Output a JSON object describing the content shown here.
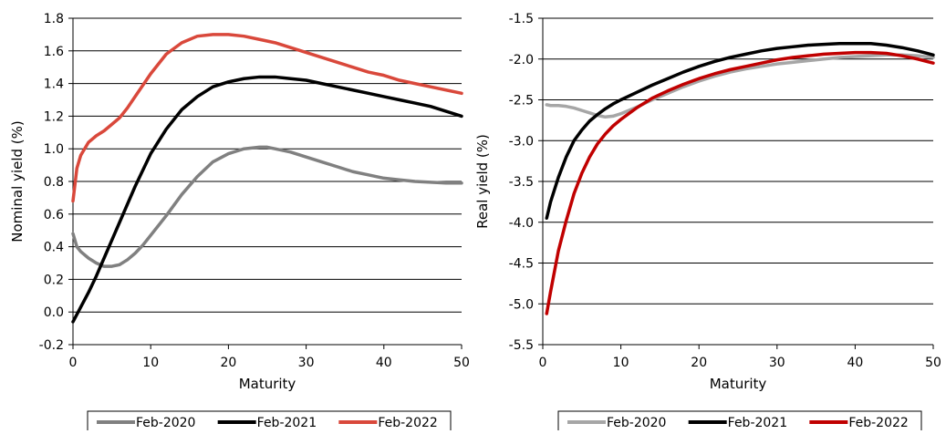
{
  "chart_data": [
    {
      "type": "line",
      "title": "",
      "xlabel": "Maturity",
      "ylabel": "Nominal yield (%)",
      "xlim": [
        0,
        50
      ],
      "ylim": [
        -0.2,
        1.8
      ],
      "xticks": [
        "0",
        "10",
        "20",
        "30",
        "40",
        "50"
      ],
      "yticks": [
        "-0.2",
        "0.0",
        "0.2",
        "0.4",
        "0.6",
        "0.8",
        "1.0",
        "1.2",
        "1.4",
        "1.6",
        "1.8"
      ],
      "grid": "horizontal",
      "legend_position": "bottom",
      "series": [
        {
          "name": "Feb-2020",
          "color": "#808080",
          "x": [
            0,
            0.5,
            1,
            2,
            3,
            4,
            5,
            6,
            7,
            8,
            9,
            10,
            12,
            14,
            16,
            18,
            20,
            22,
            24,
            25,
            26,
            28,
            30,
            32,
            34,
            36,
            38,
            40,
            42,
            44,
            46,
            48,
            50
          ],
          "y": [
            0.48,
            0.4,
            0.37,
            0.33,
            0.3,
            0.28,
            0.28,
            0.29,
            0.32,
            0.36,
            0.41,
            0.47,
            0.59,
            0.72,
            0.83,
            0.92,
            0.97,
            1.0,
            1.01,
            1.01,
            1.0,
            0.98,
            0.95,
            0.92,
            0.89,
            0.86,
            0.84,
            0.82,
            0.81,
            0.8,
            0.795,
            0.79,
            0.79
          ]
        },
        {
          "name": "Feb-2021",
          "color": "#000000",
          "x": [
            0,
            1,
            2,
            3,
            4,
            5,
            6,
            7,
            8,
            9,
            10,
            12,
            14,
            16,
            18,
            20,
            22,
            24,
            26,
            28,
            30,
            32,
            34,
            36,
            38,
            40,
            42,
            44,
            46,
            48,
            50
          ],
          "y": [
            -0.06,
            0.03,
            0.12,
            0.22,
            0.33,
            0.44,
            0.55,
            0.66,
            0.77,
            0.87,
            0.97,
            1.12,
            1.24,
            1.32,
            1.38,
            1.41,
            1.43,
            1.44,
            1.44,
            1.43,
            1.42,
            1.4,
            1.38,
            1.36,
            1.34,
            1.32,
            1.3,
            1.28,
            1.26,
            1.23,
            1.2
          ]
        },
        {
          "name": "Feb-2022",
          "color": "#d9483b",
          "x": [
            0,
            0.5,
            1,
            2,
            3,
            4,
            5,
            6,
            7,
            8,
            9,
            10,
            12,
            14,
            16,
            18,
            20,
            22,
            24,
            26,
            28,
            30,
            32,
            34,
            36,
            38,
            40,
            42,
            44,
            46,
            48,
            50
          ],
          "y": [
            0.68,
            0.88,
            0.96,
            1.04,
            1.08,
            1.11,
            1.15,
            1.19,
            1.25,
            1.32,
            1.39,
            1.46,
            1.58,
            1.65,
            1.69,
            1.7,
            1.7,
            1.69,
            1.67,
            1.65,
            1.62,
            1.59,
            1.56,
            1.53,
            1.5,
            1.47,
            1.45,
            1.42,
            1.4,
            1.38,
            1.36,
            1.34
          ]
        }
      ]
    },
    {
      "type": "line",
      "title": "",
      "xlabel": "Maturity",
      "ylabel": "Real yield (%)",
      "xlim": [
        0,
        50
      ],
      "ylim": [
        -5.5,
        -1.5
      ],
      "xticks": [
        "0",
        "10",
        "20",
        "30",
        "40",
        "50"
      ],
      "yticks": [
        "-5.5",
        "-5.0",
        "-4.5",
        "-4.0",
        "-3.5",
        "-3.0",
        "-2.5",
        "-2.0",
        "-1.5"
      ],
      "grid": "horizontal",
      "legend_position": "bottom",
      "series": [
        {
          "name": "Feb-2020",
          "color": "#a6a6a6",
          "x": [
            0.5,
            1,
            2,
            3,
            4,
            5,
            6,
            7,
            8,
            9,
            10,
            12,
            14,
            16,
            18,
            20,
            22,
            24,
            26,
            28,
            30,
            32,
            34,
            36,
            38,
            40,
            42,
            44,
            46,
            48,
            50
          ],
          "y": [
            -2.56,
            -2.57,
            -2.57,
            -2.58,
            -2.6,
            -2.63,
            -2.66,
            -2.69,
            -2.71,
            -2.7,
            -2.67,
            -2.59,
            -2.5,
            -2.42,
            -2.34,
            -2.27,
            -2.21,
            -2.16,
            -2.12,
            -2.09,
            -2.06,
            -2.04,
            -2.02,
            -2.0,
            -1.98,
            -1.97,
            -1.96,
            -1.95,
            -1.95,
            -1.96,
            -1.98
          ]
        },
        {
          "name": "Feb-2021",
          "color": "#000000",
          "x": [
            0.5,
            1,
            2,
            3,
            4,
            5,
            6,
            7,
            8,
            9,
            10,
            12,
            14,
            16,
            18,
            20,
            22,
            24,
            26,
            28,
            30,
            32,
            34,
            36,
            38,
            40,
            42,
            44,
            46,
            48,
            50
          ],
          "y": [
            -3.95,
            -3.75,
            -3.45,
            -3.2,
            -3.0,
            -2.87,
            -2.76,
            -2.68,
            -2.61,
            -2.55,
            -2.5,
            -2.41,
            -2.32,
            -2.24,
            -2.16,
            -2.09,
            -2.03,
            -1.98,
            -1.94,
            -1.9,
            -1.87,
            -1.85,
            -1.83,
            -1.82,
            -1.81,
            -1.81,
            -1.81,
            -1.83,
            -1.86,
            -1.9,
            -1.95
          ]
        },
        {
          "name": "Feb-2022",
          "color": "#c00000",
          "x": [
            0.5,
            1,
            2,
            3,
            4,
            5,
            6,
            7,
            8,
            9,
            10,
            12,
            14,
            16,
            18,
            20,
            22,
            24,
            26,
            28,
            30,
            32,
            34,
            36,
            38,
            40,
            42,
            44,
            46,
            48,
            50
          ],
          "y": [
            -5.12,
            -4.85,
            -4.35,
            -3.98,
            -3.65,
            -3.4,
            -3.2,
            -3.04,
            -2.92,
            -2.82,
            -2.74,
            -2.6,
            -2.48,
            -2.39,
            -2.31,
            -2.24,
            -2.18,
            -2.13,
            -2.09,
            -2.05,
            -2.01,
            -1.98,
            -1.96,
            -1.94,
            -1.93,
            -1.92,
            -1.92,
            -1.93,
            -1.96,
            -2.0,
            -2.05
          ]
        }
      ]
    }
  ]
}
